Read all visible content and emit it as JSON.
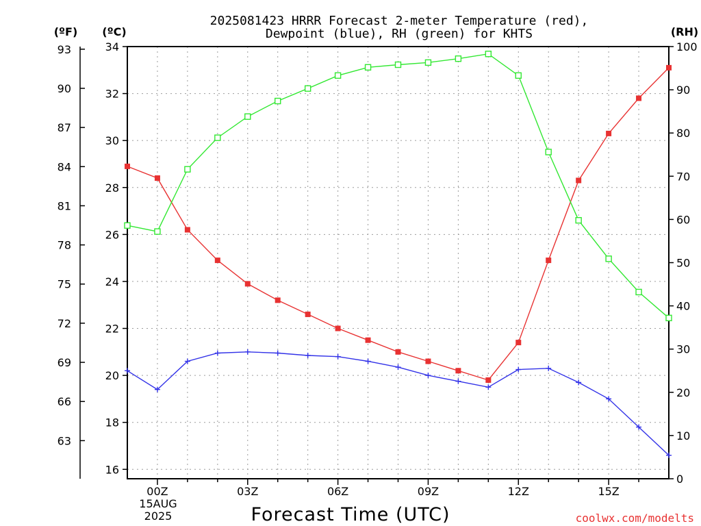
{
  "chart_data": {
    "type": "line",
    "title_line1": "2025081423 HRRR Forecast 2-meter Temperature (red),",
    "title_line2": "Dewpoint (blue), RH (green) for KHTS",
    "xlabel": "Forecast Time (UTC)",
    "watermark": "coolwx.com/modelts",
    "left_outer_unit": "(ºF)",
    "left_inner_unit": "(ºC)",
    "right_unit": "(RH)",
    "x_hours": [
      -1,
      0,
      1,
      2,
      3,
      4,
      5,
      6,
      7,
      8,
      9,
      10,
      11,
      12,
      13,
      14,
      15,
      16,
      17
    ],
    "x_ticks": [
      {
        "hour": 0,
        "label": "00Z"
      },
      {
        "hour": 3,
        "label": "03Z"
      },
      {
        "hour": 6,
        "label": "06Z"
      },
      {
        "hour": 9,
        "label": "09Z"
      },
      {
        "hour": 12,
        "label": "12Z"
      },
      {
        "hour": 15,
        "label": "15Z"
      }
    ],
    "date_label_line1": "15AUG",
    "date_label_line2": "2025",
    "xlim": [
      -1,
      17
    ],
    "celsius_ticks": [
      16,
      18,
      20,
      22,
      24,
      26,
      28,
      30,
      32,
      34
    ],
    "celsius_ylim": [
      15.6,
      34.0
    ],
    "fahrenheit_ticks": [
      63,
      66,
      69,
      72,
      75,
      78,
      81,
      84,
      87,
      90,
      93
    ],
    "rh_ticks": [
      0,
      10,
      20,
      30,
      40,
      50,
      60,
      70,
      80,
      90,
      100
    ],
    "rh_ylim": [
      0,
      100
    ],
    "series": [
      {
        "axis": "celsius",
        "color": "#e83232",
        "marker": "filled-square",
        "values": [
          28.9,
          28.4,
          26.2,
          24.9,
          23.9,
          23.2,
          22.6,
          22.0,
          21.5,
          21.0,
          20.6,
          20.2,
          19.8,
          21.4,
          24.9,
          28.3,
          30.3,
          31.8,
          33.1
        ]
      },
      {
        "axis": "celsius",
        "color": "#3232e8",
        "marker": "plus",
        "values": [
          20.2,
          19.4,
          20.6,
          20.95,
          21.0,
          20.95,
          20.85,
          20.8,
          20.6,
          20.35,
          20.0,
          19.75,
          19.5,
          20.25,
          20.3,
          19.7,
          19.0,
          17.8,
          16.6
        ]
      },
      {
        "axis": "rh",
        "color": "#32e832",
        "marker": "hollow-square",
        "values": [
          58.6,
          57.2,
          71.6,
          78.9,
          83.8,
          87.4,
          90.3,
          93.3,
          95.2,
          95.8,
          96.3,
          97.2,
          98.3,
          93.3,
          75.6,
          59.8,
          50.9,
          43.2,
          37.2
        ]
      }
    ]
  }
}
